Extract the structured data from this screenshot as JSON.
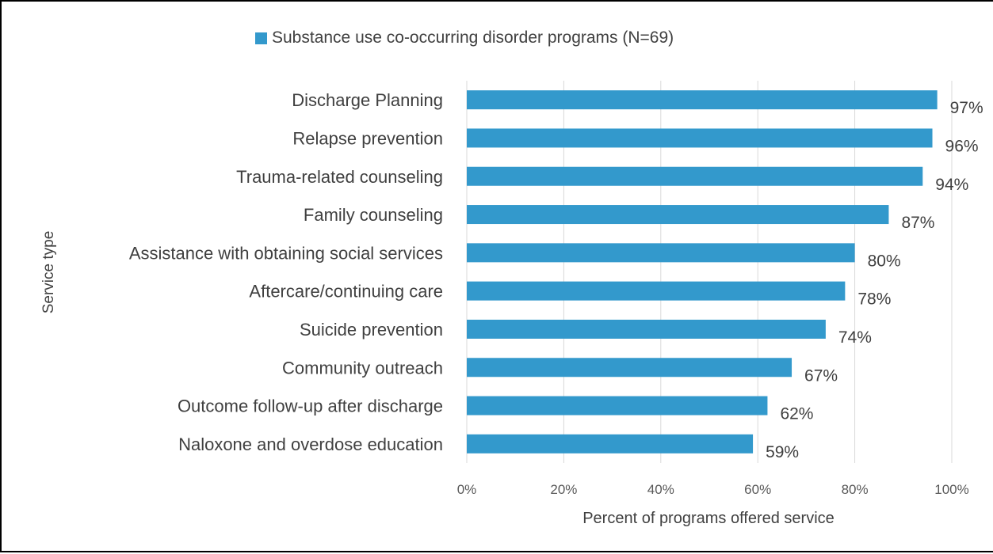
{
  "chart_data": {
    "type": "bar",
    "orientation": "horizontal",
    "categories": [
      "Discharge Planning",
      "Relapse prevention",
      "Trauma-related counseling",
      "Family counseling",
      "Assistance with obtaining social services",
      "Aftercare/continuing care",
      "Suicide prevention",
      "Community outreach",
      "Outcome follow-up after discharge",
      "Naloxone and overdose education"
    ],
    "series": [
      {
        "name": "Substance use co-occurring disorder programs (N=69)",
        "values": [
          97,
          96,
          94,
          87,
          80,
          78,
          74,
          67,
          62,
          59
        ],
        "data_labels": [
          "97%",
          "96%",
          "94%",
          "87%",
          "80%",
          "78%",
          "74%",
          "67%",
          "62%",
          "59%"
        ],
        "color": "#3399cc"
      }
    ],
    "xlabel": "Percent of programs offered service",
    "ylabel": "Service type",
    "xlim": [
      0,
      100
    ],
    "xticks": [
      0,
      20,
      40,
      60,
      80,
      100
    ],
    "xtick_labels": [
      "0%",
      "20%",
      "40%",
      "60%",
      "80%",
      "100%"
    ],
    "grid": "vertical",
    "legend": "top-center",
    "colors": {
      "bar": "#3399cc",
      "grid": "#d9d9d9",
      "text": "#404040"
    }
  }
}
